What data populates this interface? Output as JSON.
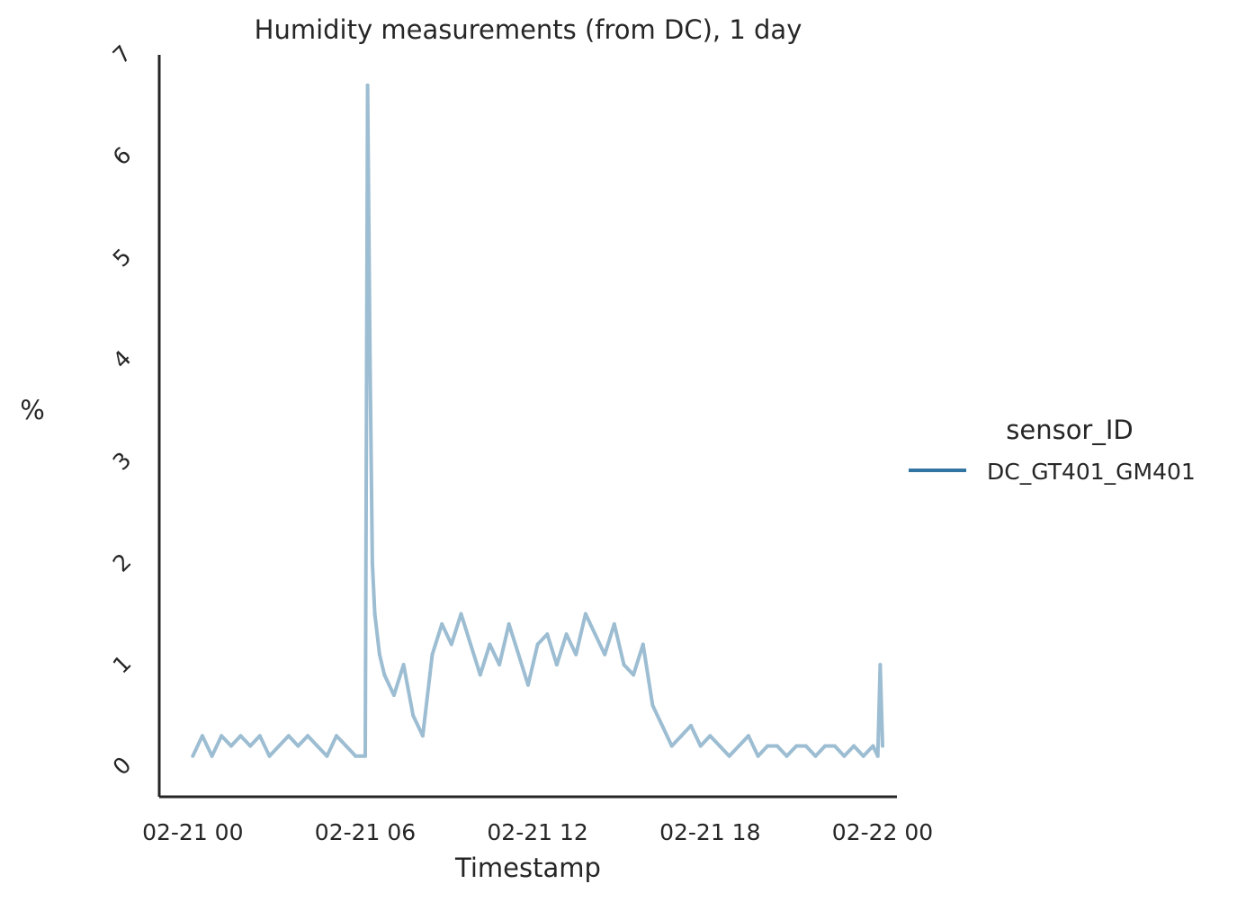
{
  "chart_data": {
    "type": "line",
    "title": "Humidity measurements (from DC), 1 day",
    "xlabel": "Timestamp",
    "ylabel": "%",
    "x_ticks": [
      "02-21 00",
      "02-21 06",
      "02-21 12",
      "02-21 18",
      "02-22 00"
    ],
    "xlim": [
      "2023-02-20T22:50",
      "2023-02-22T00:30"
    ],
    "y_ticks": [
      "0",
      "1",
      "2",
      "3",
      "4",
      "5",
      "6",
      "7"
    ],
    "ylim": [
      -0.3,
      7.0
    ],
    "grid": false,
    "legend": {
      "title": "sensor_ID",
      "placement": "right",
      "entries": [
        {
          "name": "DC_GT401_GM401",
          "color": "#3274a1"
        }
      ]
    },
    "series": [
      {
        "name": "DC_GT401_GM401",
        "color": "#9cbdd2",
        "x": [
          "2023-02-21T00:00",
          "2023-02-21T00:20",
          "2023-02-21T00:40",
          "2023-02-21T01:00",
          "2023-02-21T01:20",
          "2023-02-21T01:40",
          "2023-02-21T02:00",
          "2023-02-21T02:20",
          "2023-02-21T02:40",
          "2023-02-21T03:00",
          "2023-02-21T03:20",
          "2023-02-21T03:40",
          "2023-02-21T04:00",
          "2023-02-21T04:20",
          "2023-02-21T04:40",
          "2023-02-21T05:00",
          "2023-02-21T05:20",
          "2023-02-21T05:40",
          "2023-02-21T06:00",
          "2023-02-21T06:05",
          "2023-02-21T06:10",
          "2023-02-21T06:15",
          "2023-02-21T06:20",
          "2023-02-21T06:30",
          "2023-02-21T06:40",
          "2023-02-21T07:00",
          "2023-02-21T07:20",
          "2023-02-21T07:40",
          "2023-02-21T08:00",
          "2023-02-21T08:20",
          "2023-02-21T08:40",
          "2023-02-21T09:00",
          "2023-02-21T09:20",
          "2023-02-21T09:40",
          "2023-02-21T10:00",
          "2023-02-21T10:20",
          "2023-02-21T10:40",
          "2023-02-21T11:00",
          "2023-02-21T11:20",
          "2023-02-21T11:40",
          "2023-02-21T12:00",
          "2023-02-21T12:20",
          "2023-02-21T12:40",
          "2023-02-21T13:00",
          "2023-02-21T13:20",
          "2023-02-21T13:40",
          "2023-02-21T14:00",
          "2023-02-21T14:20",
          "2023-02-21T14:40",
          "2023-02-21T15:00",
          "2023-02-21T15:20",
          "2023-02-21T15:40",
          "2023-02-21T16:00",
          "2023-02-21T16:20",
          "2023-02-21T16:40",
          "2023-02-21T17:00",
          "2023-02-21T17:20",
          "2023-02-21T17:40",
          "2023-02-21T18:00",
          "2023-02-21T18:20",
          "2023-02-21T18:40",
          "2023-02-21T19:00",
          "2023-02-21T19:20",
          "2023-02-21T19:40",
          "2023-02-21T20:00",
          "2023-02-21T20:20",
          "2023-02-21T20:40",
          "2023-02-21T21:00",
          "2023-02-21T21:20",
          "2023-02-21T21:40",
          "2023-02-21T22:00",
          "2023-02-21T22:20",
          "2023-02-21T22:40",
          "2023-02-21T23:00",
          "2023-02-21T23:20",
          "2023-02-21T23:40",
          "2023-02-21T23:50",
          "2023-02-21T23:55",
          "2023-02-22T00:00"
        ],
        "y": [
          0.1,
          0.3,
          0.1,
          0.3,
          0.2,
          0.3,
          0.2,
          0.3,
          0.1,
          0.2,
          0.3,
          0.2,
          0.3,
          0.2,
          0.1,
          0.3,
          0.2,
          0.1,
          0.1,
          6.7,
          4.0,
          2.0,
          1.5,
          1.1,
          0.9,
          0.7,
          1.0,
          0.5,
          0.3,
          1.1,
          1.4,
          1.2,
          1.5,
          1.2,
          0.9,
          1.2,
          1.0,
          1.4,
          1.1,
          0.8,
          1.2,
          1.3,
          1.0,
          1.3,
          1.1,
          1.5,
          1.3,
          1.1,
          1.4,
          1.0,
          0.9,
          1.2,
          0.6,
          0.4,
          0.2,
          0.3,
          0.4,
          0.2,
          0.3,
          0.2,
          0.1,
          0.2,
          0.3,
          0.1,
          0.2,
          0.2,
          0.1,
          0.2,
          0.2,
          0.1,
          0.2,
          0.2,
          0.1,
          0.2,
          0.1,
          0.2,
          0.1,
          1.0,
          0.2
        ]
      }
    ]
  }
}
